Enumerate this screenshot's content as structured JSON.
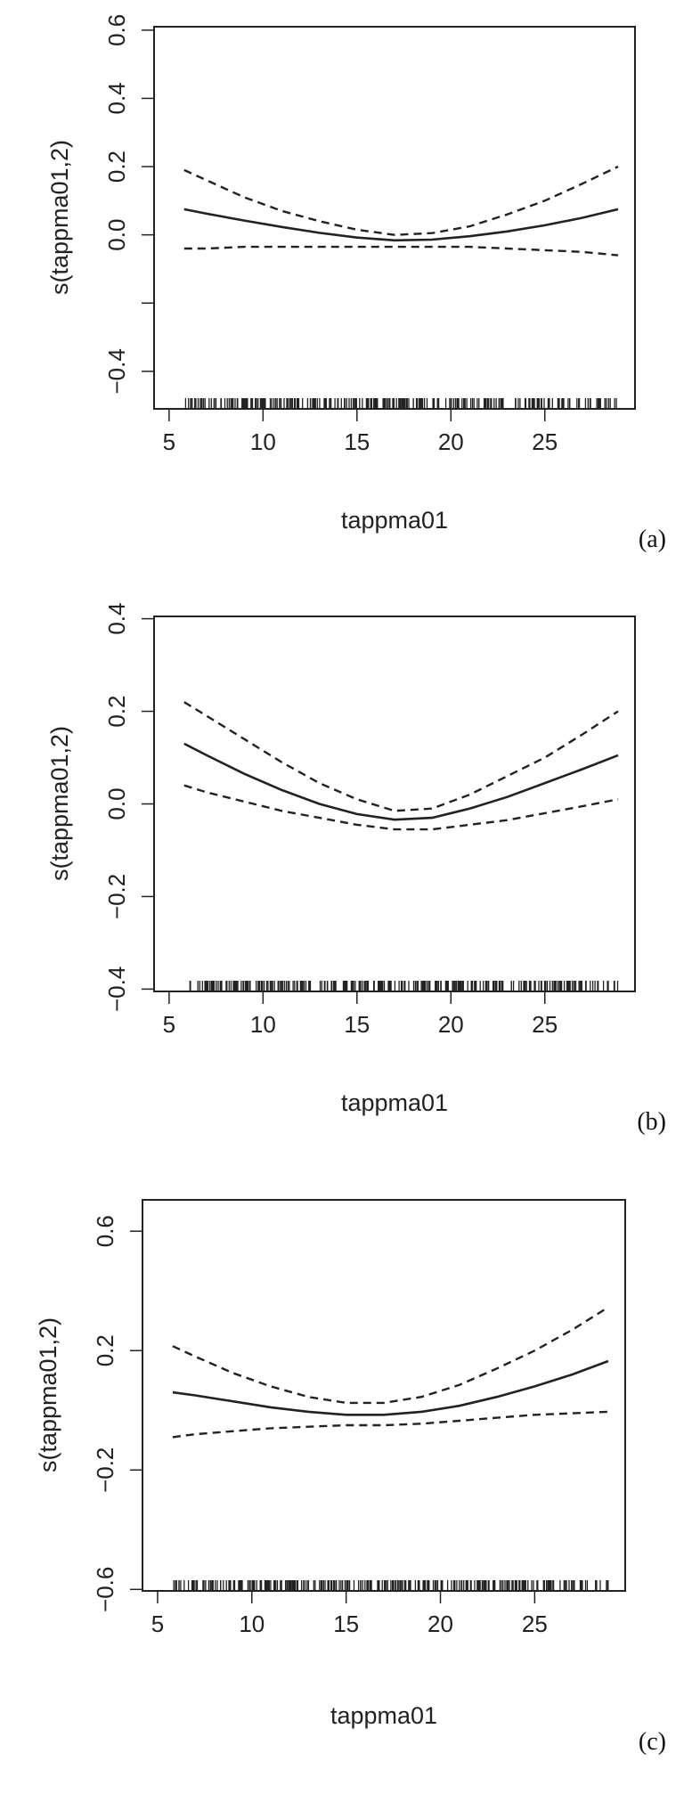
{
  "chart_data": [
    {
      "type": "line",
      "panel_label": "(a)",
      "xlabel": "tappma01",
      "ylabel": "s(tappma01,2)",
      "xlim": [
        4.2,
        29.8
      ],
      "ylim": [
        -0.51,
        0.61
      ],
      "xticks": [
        5,
        10,
        15,
        20,
        25
      ],
      "xtick_labels": [
        "5",
        "10",
        "15",
        "20",
        "25"
      ],
      "yticks": [
        -0.4,
        -0.2,
        0.0,
        0.2,
        0.4,
        0.6
      ],
      "ytick_labels": [
        "−0.4",
        "",
        "0.0",
        "0.2",
        "0.4",
        "0.6"
      ],
      "x": [
        5.8,
        7,
        9,
        11,
        13,
        15,
        17,
        19,
        21,
        23,
        25,
        27,
        28.9
      ],
      "series": [
        {
          "role": "estimate",
          "line_style": "solid",
          "values": [
            0.075,
            0.062,
            0.042,
            0.023,
            0.006,
            -0.008,
            -0.016,
            -0.014,
            -0.004,
            0.01,
            0.028,
            0.05,
            0.075
          ]
        },
        {
          "role": "upper",
          "line_style": "dashed",
          "values": [
            0.19,
            0.16,
            0.11,
            0.07,
            0.04,
            0.015,
            0.0,
            0.005,
            0.025,
            0.06,
            0.1,
            0.15,
            0.2
          ]
        },
        {
          "role": "lower",
          "line_style": "dashed",
          "values": [
            -0.04,
            -0.04,
            -0.035,
            -0.035,
            -0.035,
            -0.035,
            -0.035,
            -0.035,
            -0.035,
            -0.04,
            -0.045,
            -0.05,
            -0.06
          ]
        }
      ],
      "rug_range": [
        5.8,
        28.9
      ],
      "rug_dense_range": [
        8.5,
        26.5
      ],
      "rug_count": 240
    },
    {
      "type": "line",
      "panel_label": "(b)",
      "xlabel": "tappma01",
      "ylabel": "s(tappma01,2)",
      "xlim": [
        4.2,
        29.8
      ],
      "ylim": [
        -0.405,
        0.405
      ],
      "xticks": [
        5,
        10,
        15,
        20,
        25
      ],
      "xtick_labels": [
        "5",
        "10",
        "15",
        "20",
        "25"
      ],
      "yticks": [
        -0.4,
        -0.2,
        0.0,
        0.2,
        0.4
      ],
      "ytick_labels": [
        "−0.4",
        "−0.2",
        "0.0",
        "0.2",
        "0.4"
      ],
      "x": [
        5.8,
        7,
        9,
        11,
        13,
        15,
        17,
        19,
        21,
        23,
        25,
        27,
        28.9
      ],
      "series": [
        {
          "role": "estimate",
          "line_style": "solid",
          "values": [
            0.13,
            0.105,
            0.065,
            0.03,
            0.0,
            -0.022,
            -0.034,
            -0.03,
            -0.01,
            0.015,
            0.045,
            0.075,
            0.105
          ]
        },
        {
          "role": "upper",
          "line_style": "dashed",
          "values": [
            0.22,
            0.19,
            0.14,
            0.09,
            0.045,
            0.01,
            -0.015,
            -0.01,
            0.02,
            0.06,
            0.1,
            0.15,
            0.2
          ]
        },
        {
          "role": "lower",
          "line_style": "dashed",
          "values": [
            0.04,
            0.025,
            0.005,
            -0.015,
            -0.03,
            -0.045,
            -0.055,
            -0.055,
            -0.045,
            -0.035,
            -0.02,
            -0.005,
            0.01
          ]
        }
      ],
      "rug_range": [
        5.8,
        28.9
      ],
      "rug_dense_range": [
        8.5,
        26.5
      ],
      "rug_count": 240
    },
    {
      "type": "line",
      "panel_label": "(c)",
      "xlabel": "tappma01",
      "ylabel": "s(tappma01,2)",
      "xlim": [
        4.2,
        29.8
      ],
      "ylim": [
        -0.605,
        0.705
      ],
      "xticks": [
        5,
        10,
        15,
        20,
        25
      ],
      "xtick_labels": [
        "5",
        "10",
        "15",
        "20",
        "25"
      ],
      "yticks": [
        -0.6,
        -0.2,
        0.2,
        0.6
      ],
      "ytick_labels": [
        "−0.6",
        "−0.2",
        "0.2",
        "0.6"
      ],
      "x": [
        5.8,
        7,
        9,
        11,
        13,
        15,
        17,
        19,
        21,
        23,
        25,
        27,
        28.9
      ],
      "series": [
        {
          "role": "estimate",
          "line_style": "solid",
          "values": [
            0.06,
            0.05,
            0.03,
            0.01,
            -0.005,
            -0.015,
            -0.015,
            -0.005,
            0.015,
            0.045,
            0.08,
            0.12,
            0.165
          ]
        },
        {
          "role": "upper",
          "line_style": "dashed",
          "values": [
            0.215,
            0.18,
            0.125,
            0.08,
            0.045,
            0.025,
            0.025,
            0.045,
            0.085,
            0.14,
            0.2,
            0.27,
            0.345
          ]
        },
        {
          "role": "lower",
          "line_style": "dashed",
          "values": [
            -0.09,
            -0.08,
            -0.07,
            -0.06,
            -0.055,
            -0.05,
            -0.05,
            -0.045,
            -0.035,
            -0.025,
            -0.015,
            -0.01,
            -0.005
          ]
        }
      ],
      "rug_range": [
        5.8,
        28.9
      ],
      "rug_dense_range": [
        8.5,
        26.5
      ],
      "rug_count": 240
    }
  ]
}
